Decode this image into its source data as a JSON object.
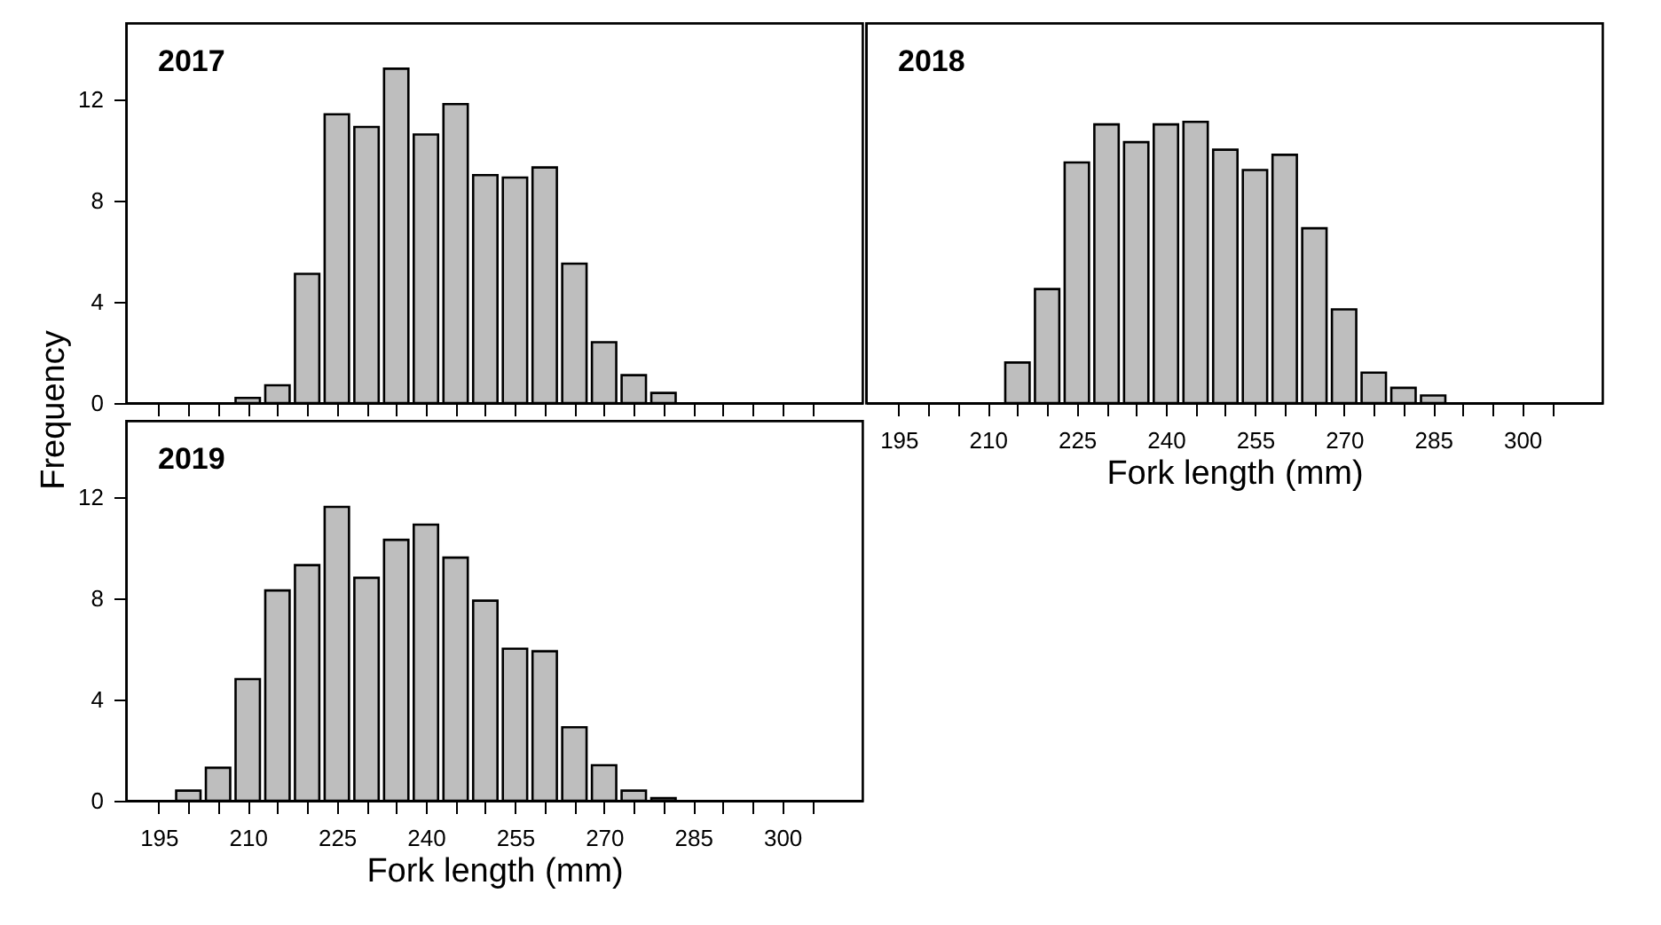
{
  "chart_data": [
    {
      "type": "histogram",
      "title": "2017",
      "ylabel": "Frequency",
      "tick_labels": "y",
      "grid": false,
      "color": "#bebebe",
      "bins": [
        207.5,
        212.5,
        217.5,
        222.5,
        227.5,
        232.5,
        237.5,
        242.5,
        247.5,
        252.5,
        257.5,
        262.5,
        267.5,
        272.5,
        277.5,
        282.5
      ],
      "values": [
        0.2,
        0.7,
        5.1,
        11.4,
        10.9,
        13.2,
        10.6,
        11.8,
        9.0,
        8.9,
        9.3,
        5.5,
        2.4,
        1.1,
        0.4
      ],
      "xlim": [
        189.5,
        313.5
      ],
      "ylim": [
        0,
        15
      ],
      "yticks": [
        0,
        4,
        8,
        12
      ],
      "xticks": [
        195,
        {
          "value": 200,
          "label": null
        },
        {
          "value": 205,
          "label": null
        },
        210,
        {
          "value": 215,
          "label": null
        },
        {
          "value": 220,
          "label": null
        },
        225,
        {
          "value": 230,
          "label": null
        },
        {
          "value": 235,
          "label": null
        },
        240,
        {
          "value": 245,
          "label": null
        },
        {
          "value": 250,
          "label": null
        },
        255,
        {
          "value": 260,
          "label": null
        },
        {
          "value": 265,
          "label": null
        },
        270,
        {
          "value": 275,
          "label": null
        },
        {
          "value": 280,
          "label": null
        },
        285,
        {
          "value": 290,
          "label": null
        },
        {
          "value": 295,
          "label": null
        },
        300,
        {
          "value": 305,
          "label": null
        }
      ]
    },
    {
      "type": "histogram",
      "title": "2018",
      "xlabel": "Fork length (mm)",
      "tick_labels": "x",
      "grid": false,
      "color": "#bebebe",
      "bins": [
        212.5,
        217.5,
        222.5,
        227.5,
        232.5,
        237.5,
        242.5,
        247.5,
        252.5,
        257.5,
        262.5,
        267.5,
        272.5,
        277.5,
        282.5,
        287.5
      ],
      "values": [
        1.6,
        4.5,
        9.5,
        11.0,
        10.3,
        11.0,
        11.1,
        10.0,
        9.2,
        9.8,
        6.9,
        3.7,
        1.2,
        0.6,
        0.3
      ],
      "xlim": [
        189.5,
        313.5
      ],
      "ylim": [
        0,
        15
      ],
      "yticks": [
        0,
        4,
        8,
        12
      ],
      "xticks": [
        195,
        {
          "value": 200,
          "label": null
        },
        {
          "value": 205,
          "label": null
        },
        210,
        {
          "value": 215,
          "label": null
        },
        {
          "value": 220,
          "label": null
        },
        225,
        {
          "value": 230,
          "label": null
        },
        {
          "value": 235,
          "label": null
        },
        240,
        {
          "value": 245,
          "label": null
        },
        {
          "value": 250,
          "label": null
        },
        255,
        {
          "value": 260,
          "label": null
        },
        {
          "value": 265,
          "label": null
        },
        270,
        {
          "value": 275,
          "label": null
        },
        {
          "value": 280,
          "label": null
        },
        285,
        {
          "value": 290,
          "label": null
        },
        {
          "value": 295,
          "label": null
        },
        300,
        {
          "value": 305,
          "label": null
        }
      ]
    },
    {
      "type": "histogram",
      "title": "2019",
      "xlabel": "Fork length (mm)",
      "grid": false,
      "color": "#bebebe",
      "bins": [
        197.5,
        202.5,
        207.5,
        212.5,
        217.5,
        222.5,
        227.5,
        232.5,
        237.5,
        242.5,
        247.5,
        252.5,
        257.5,
        262.5,
        267.5,
        272.5,
        277.5,
        282.5
      ],
      "values": [
        0.4,
        1.3,
        4.8,
        8.3,
        9.3,
        11.6,
        8.8,
        10.3,
        10.9,
        9.6,
        7.9,
        6.0,
        5.9,
        2.9,
        1.4,
        0.4,
        0.1
      ],
      "xlim": [
        189.5,
        313.5
      ],
      "ylim": [
        0,
        15
      ],
      "yticks": [
        0,
        4,
        8,
        12
      ],
      "xticks": [
        195,
        {
          "value": 200,
          "label": null
        },
        {
          "value": 205,
          "label": null
        },
        210,
        {
          "value": 215,
          "label": null
        },
        {
          "value": 220,
          "label": null
        },
        225,
        {
          "value": 230,
          "label": null
        },
        {
          "value": 235,
          "label": null
        },
        240,
        {
          "value": 245,
          "label": null
        },
        {
          "value": 250,
          "label": null
        },
        255,
        {
          "value": 260,
          "label": null
        },
        {
          "value": 265,
          "label": null
        },
        270,
        {
          "value": 275,
          "label": null
        },
        {
          "value": 280,
          "label": null
        },
        285,
        {
          "value": 290,
          "label": null
        },
        {
          "value": 295,
          "label": null
        },
        300,
        {
          "value": 305,
          "label": null
        }
      ]
    }
  ]
}
